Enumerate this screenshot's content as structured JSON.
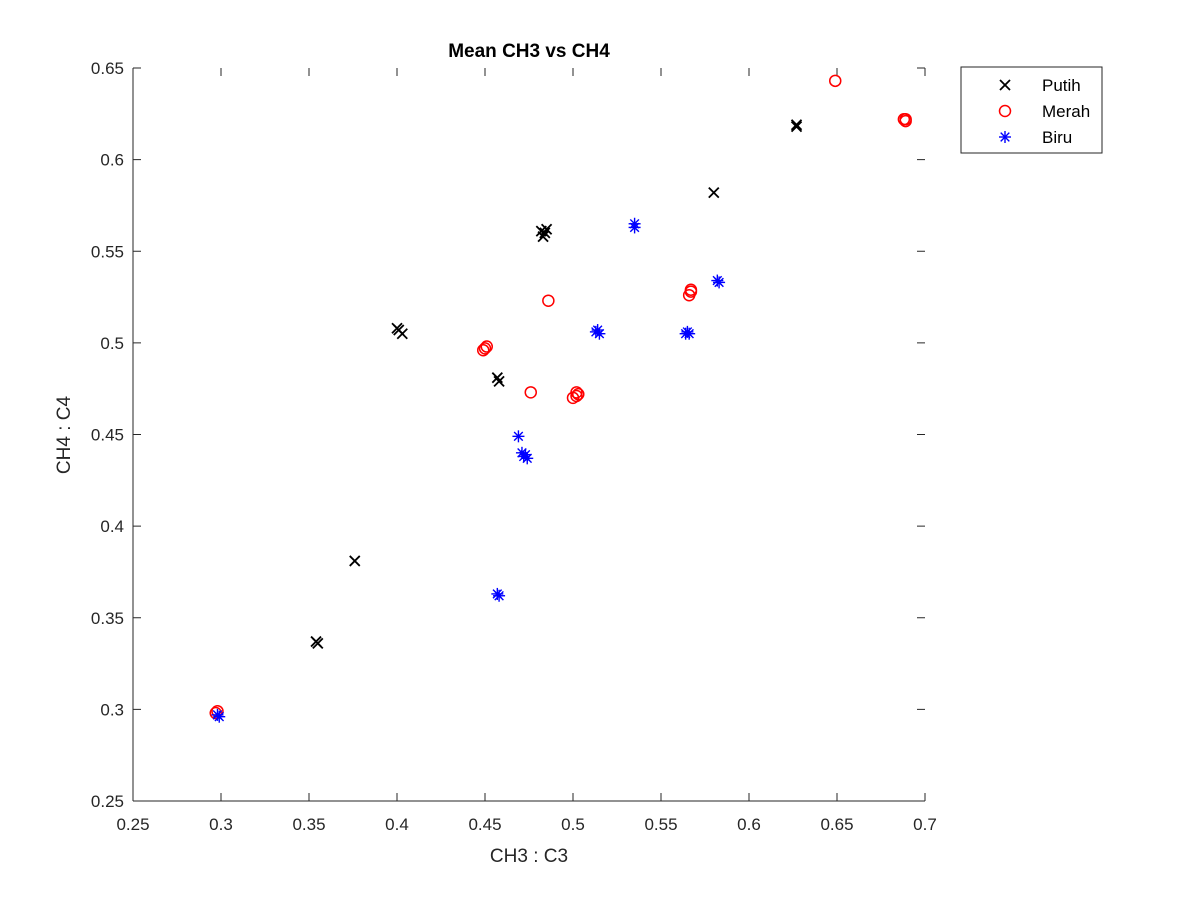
{
  "chart_data": {
    "type": "scatter",
    "title": "Mean CH3 vs CH4",
    "xlabel": "CH3 : C3",
    "ylabel": "CH4 : C4",
    "xlim": [
      0.25,
      0.7
    ],
    "ylim": [
      0.25,
      0.65
    ],
    "xticks": [
      "0.25",
      "0.3",
      "0.35",
      "0.4",
      "0.45",
      "0.5",
      "0.55",
      "0.6",
      "0.65",
      "0.7"
    ],
    "yticks": [
      "0.25",
      "0.3",
      "0.35",
      "0.4",
      "0.45",
      "0.5",
      "0.55",
      "0.6",
      "0.65"
    ],
    "grid": false,
    "legend_position": "top-right",
    "series": [
      {
        "name": "Putih",
        "marker": "x",
        "color": "#000000",
        "points": [
          [
            0.627,
            0.619
          ],
          [
            0.627,
            0.618
          ],
          [
            0.58,
            0.582
          ],
          [
            0.485,
            0.562
          ],
          [
            0.482,
            0.561
          ],
          [
            0.483,
            0.558
          ],
          [
            0.484,
            0.56
          ],
          [
            0.4,
            0.508
          ],
          [
            0.401,
            0.507
          ],
          [
            0.403,
            0.505
          ],
          [
            0.457,
            0.481
          ],
          [
            0.458,
            0.479
          ],
          [
            0.376,
            0.381
          ],
          [
            0.354,
            0.337
          ],
          [
            0.355,
            0.336
          ]
        ]
      },
      {
        "name": "Merah",
        "marker": "o",
        "color": "#ff0000",
        "points": [
          [
            0.649,
            0.643
          ],
          [
            0.689,
            0.622
          ],
          [
            0.689,
            0.621
          ],
          [
            0.688,
            0.622
          ],
          [
            0.486,
            0.523
          ],
          [
            0.567,
            0.529
          ],
          [
            0.566,
            0.526
          ],
          [
            0.567,
            0.528
          ],
          [
            0.45,
            0.497
          ],
          [
            0.449,
            0.496
          ],
          [
            0.451,
            0.498
          ],
          [
            0.476,
            0.473
          ],
          [
            0.502,
            0.473
          ],
          [
            0.5,
            0.47
          ],
          [
            0.502,
            0.471
          ],
          [
            0.503,
            0.472
          ],
          [
            0.297,
            0.298
          ],
          [
            0.298,
            0.299
          ]
        ]
      },
      {
        "name": "Biru",
        "marker": "*",
        "color": "#0000ff",
        "points": [
          [
            0.535,
            0.565
          ],
          [
            0.535,
            0.563
          ],
          [
            0.582,
            0.534
          ],
          [
            0.583,
            0.533
          ],
          [
            0.513,
            0.506
          ],
          [
            0.515,
            0.505
          ],
          [
            0.514,
            0.507
          ],
          [
            0.564,
            0.505
          ],
          [
            0.566,
            0.505
          ],
          [
            0.565,
            0.506
          ],
          [
            0.469,
            0.449
          ],
          [
            0.471,
            0.44
          ],
          [
            0.474,
            0.437
          ],
          [
            0.472,
            0.438
          ],
          [
            0.473,
            0.439
          ],
          [
            0.457,
            0.363
          ],
          [
            0.458,
            0.362
          ],
          [
            0.298,
            0.297
          ],
          [
            0.299,
            0.296
          ]
        ]
      }
    ]
  }
}
